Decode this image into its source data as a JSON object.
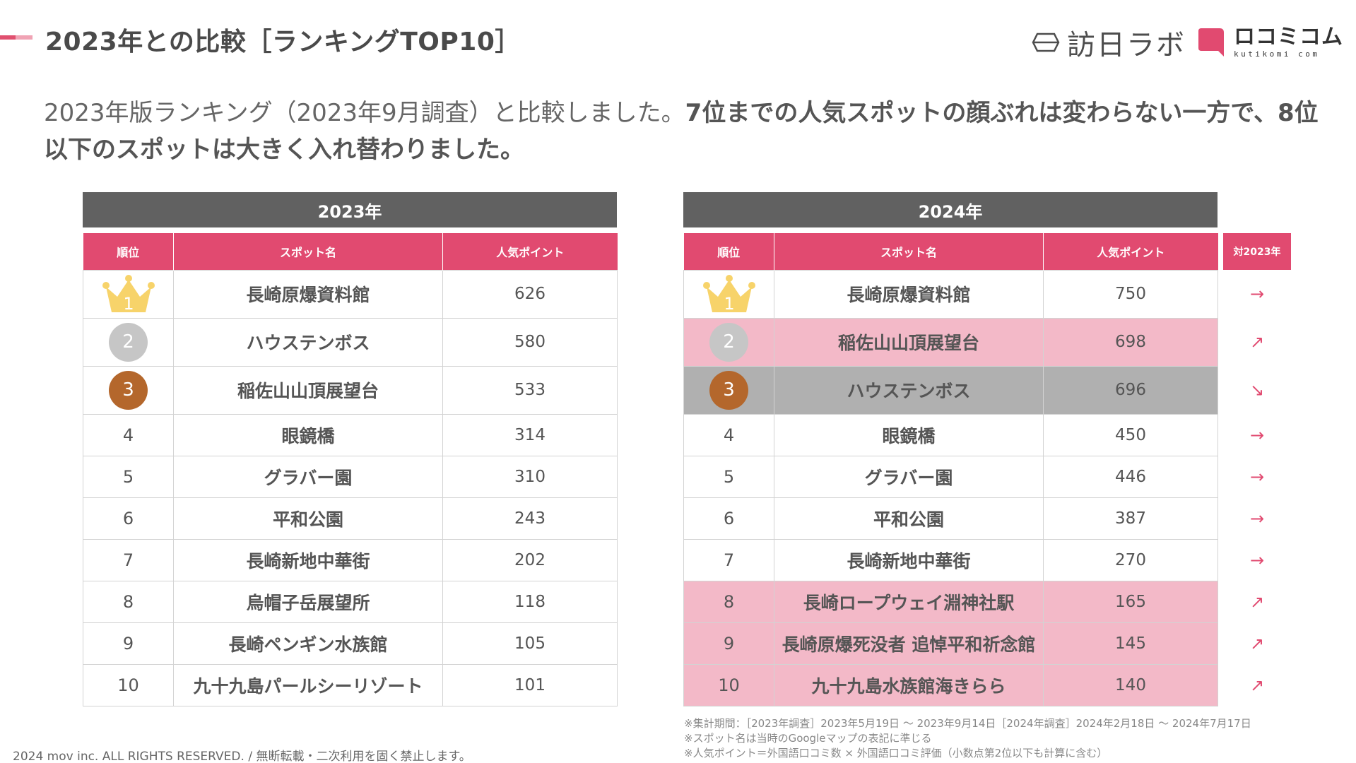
{
  "header": {
    "title": "2023年との比較［ランキングTOP10］",
    "logo_houjitsu": "訪日ラボ",
    "logo_kuchikomi": "ロコミコム",
    "logo_kuchikomi_sub": "kutikomi com"
  },
  "summary": {
    "normal": "2023年版ランキング（2023年9月調査）と比較しました。",
    "bold": "7位までの人気スポットの顔ぶれは変わらない一方で、8位以下のスポットは大きく入れ替わりました。"
  },
  "columns": {
    "rank": "順位",
    "name": "スポット名",
    "points": "人気ポイント",
    "comparison": "対2023年"
  },
  "table_2023": {
    "year": "2023年",
    "rows": [
      {
        "rank": "1",
        "name": "長崎原爆資料館",
        "points": "626"
      },
      {
        "rank": "2",
        "name": "ハウステンボス",
        "points": "580"
      },
      {
        "rank": "3",
        "name": "稲佐山山頂展望台",
        "points": "533"
      },
      {
        "rank": "4",
        "name": "眼鏡橋",
        "points": "314"
      },
      {
        "rank": "5",
        "name": "グラバー園",
        "points": "310"
      },
      {
        "rank": "6",
        "name": "平和公園",
        "points": "243"
      },
      {
        "rank": "7",
        "name": "長崎新地中華街",
        "points": "202"
      },
      {
        "rank": "8",
        "name": "烏帽子岳展望所",
        "points": "118"
      },
      {
        "rank": "9",
        "name": "長崎ペンギン水族館",
        "points": "105"
      },
      {
        "rank": "10",
        "name": "九十九島パールシーリゾート",
        "points": "101"
      }
    ]
  },
  "table_2024": {
    "year": "2024年",
    "rows": [
      {
        "rank": "1",
        "name": "長崎原爆資料館",
        "points": "750",
        "trend": "→"
      },
      {
        "rank": "2",
        "name": "稲佐山山頂展望台",
        "points": "698",
        "trend": "↗"
      },
      {
        "rank": "3",
        "name": "ハウステンボス",
        "points": "696",
        "trend": "↘"
      },
      {
        "rank": "4",
        "name": "眼鏡橋",
        "points": "450",
        "trend": "→"
      },
      {
        "rank": "5",
        "name": "グラバー園",
        "points": "446",
        "trend": "→"
      },
      {
        "rank": "6",
        "name": "平和公園",
        "points": "387",
        "trend": "→"
      },
      {
        "rank": "7",
        "name": "長崎新地中華街",
        "points": "270",
        "trend": "→"
      },
      {
        "rank": "8",
        "name": "長崎ロープウェイ淵神社駅",
        "points": "165",
        "trend": "↗"
      },
      {
        "rank": "9",
        "name": "長崎原爆死没者 追悼平和祈念館",
        "points": "145",
        "trend": "↗"
      },
      {
        "rank": "10",
        "name": "九十九島水族館海きらら",
        "points": "140",
        "trend": "↗"
      }
    ]
  },
  "notes": [
    "※集計期間：［2023年調査］2023年5月19日 〜 2023年9月14日［2024年調査］2024年2月18日 〜 2024年7月17日",
    "※スポット名は当時のGoogleマップの表記に準じる",
    "※人気ポイント＝外国語口コミ数 × 外国語口コミ評価（小数点第2位以下も計算に含む）"
  ],
  "footer": "2024 mov inc. ALL RIGHTS RESERVED. / 無断転載・二次利用を固く禁止します。",
  "colors": {
    "accent": "#e14a70",
    "highlight_pink": "#f3b9c8",
    "highlight_gray": "#b0b0b0",
    "header_gray": "#616161",
    "gold": "#f7d36a",
    "silver": "#c6c6c6",
    "bronze": "#b4672c"
  }
}
